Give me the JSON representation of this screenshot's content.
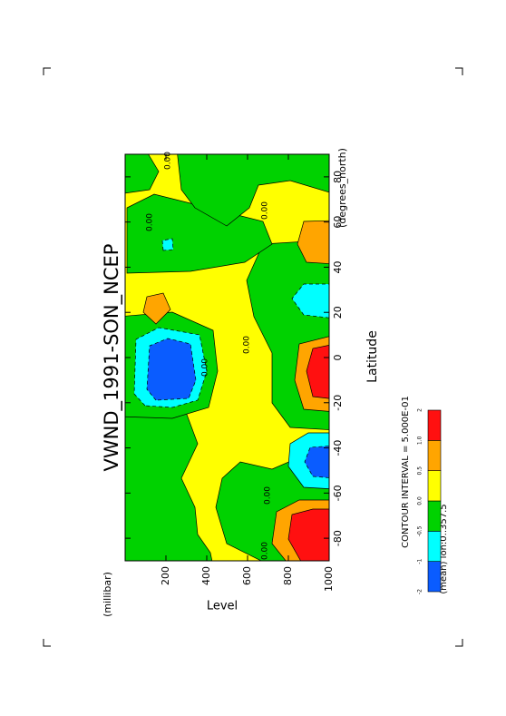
{
  "chart_data": {
    "type": "contour",
    "title": "VWND_1991-SON_NCEP",
    "x_label": "Latitude",
    "x_units": "(degrees_north)",
    "y_label": "Level",
    "y_units": "(millibar)",
    "xlim": [
      -90,
      90
    ],
    "xticks": [
      -80,
      -60,
      -40,
      -20,
      0,
      20,
      40,
      60,
      80
    ],
    "ylim": [
      1000,
      0
    ],
    "yticks": [
      200,
      400,
      600,
      800,
      1000
    ],
    "contour_label": "0.00",
    "annotations": [
      "CONTOUR INTERVAL = 5.000E-01",
      "(mean) lon:0..357.5"
    ],
    "colorbar": {
      "levels": [
        -2,
        -1,
        -0.5,
        {
          "value": 0,
          "label": "0.0"
        },
        0.5,
        {
          "value": 1,
          "label": "1.0"
        },
        2
      ],
      "colors": [
        "#0a5cff",
        "#00ffff",
        "#00d200",
        "#ffff00",
        "#ffa500",
        "#ff1010"
      ]
    }
  }
}
